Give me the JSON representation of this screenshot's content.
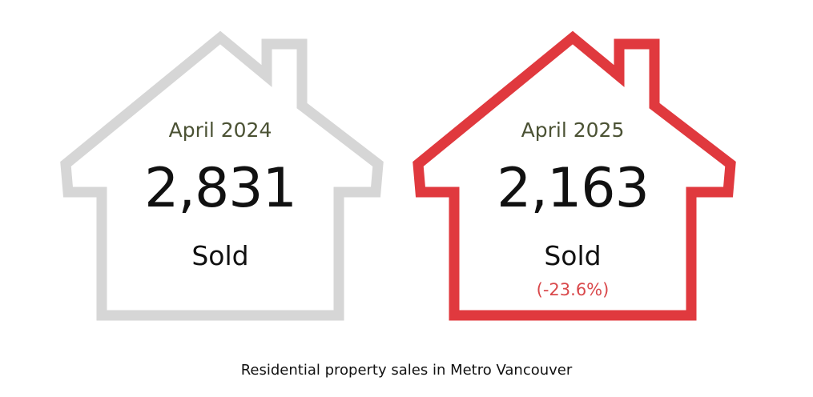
{
  "colors": {
    "previous_house": "#d6d6d6",
    "current_house": "#e0393e",
    "period_text": "#4b5234",
    "change_text": "#d9484b"
  },
  "previous": {
    "period": "April 2024",
    "count": "2,831",
    "unit": "Sold"
  },
  "current": {
    "period": "April 2025",
    "count": "2,163",
    "unit": "Sold",
    "change": "(-23.6%)"
  },
  "caption": "Residential property sales in Metro Vancouver"
}
